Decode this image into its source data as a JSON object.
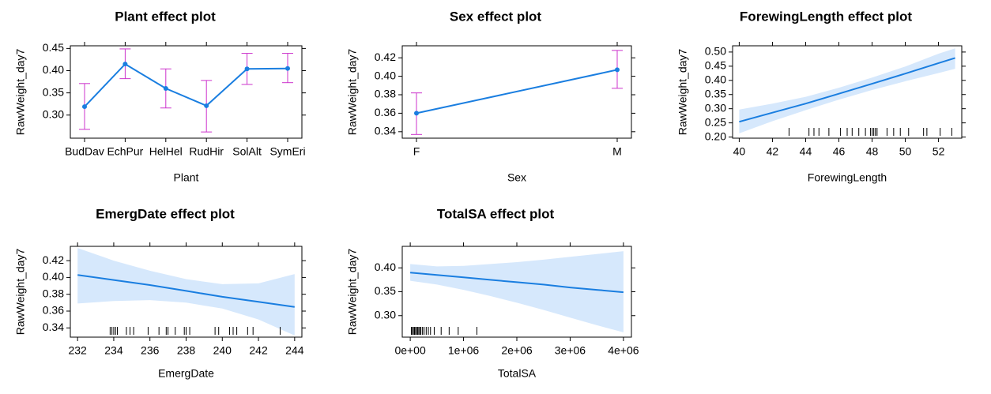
{
  "chart_data": [
    {
      "type": "line",
      "title": "Plant effect plot",
      "xlabel": "Plant",
      "ylabel": "RawWeight_day7",
      "categorical": true,
      "categories": [
        "BudDav",
        "EchPur",
        "HelHel",
        "RudHir",
        "SolAlt",
        "SymEri"
      ],
      "values": [
        0.319,
        0.415,
        0.36,
        0.321,
        0.404,
        0.405
      ],
      "lower": [
        0.268,
        0.382,
        0.316,
        0.262,
        0.369,
        0.373
      ],
      "upper": [
        0.371,
        0.449,
        0.404,
        0.378,
        0.439,
        0.439
      ],
      "ylim": [
        0.248,
        0.456
      ],
      "yticks": [
        0.3,
        0.35,
        0.4,
        0.45
      ],
      "yticklabels": [
        "0.30",
        "0.35",
        "0.40",
        "0.45"
      ],
      "line_color": "#1a7ee0",
      "ci_color": "#cc33cc"
    },
    {
      "type": "line",
      "title": "Sex effect plot",
      "xlabel": "Sex",
      "ylabel": "RawWeight_day7",
      "categorical": true,
      "categories": [
        "F",
        "M"
      ],
      "values": [
        0.36,
        0.407
      ],
      "lower": [
        0.337,
        0.387
      ],
      "upper": [
        0.382,
        0.428
      ],
      "ylim": [
        0.333,
        0.433
      ],
      "yticks": [
        0.34,
        0.36,
        0.38,
        0.4,
        0.42
      ],
      "yticklabels": [
        "0.34",
        "0.36",
        "0.38",
        "0.40",
        "0.42"
      ],
      "line_color": "#1a7ee0",
      "ci_color": "#cc33cc"
    },
    {
      "type": "area",
      "title": "ForewingLength effect plot",
      "xlabel": "ForewingLength",
      "ylabel": "RawWeight_day7",
      "categorical": false,
      "x": [
        40,
        42,
        44,
        46,
        48,
        50,
        52,
        53
      ],
      "fit": [
        0.254,
        0.286,
        0.318,
        0.353,
        0.388,
        0.424,
        0.461,
        0.479
      ],
      "lower": [
        0.213,
        0.256,
        0.295,
        0.332,
        0.366,
        0.397,
        0.426,
        0.441
      ],
      "upper": [
        0.297,
        0.318,
        0.342,
        0.374,
        0.41,
        0.449,
        0.494,
        0.513
      ],
      "xlim": [
        39.6,
        53.4
      ],
      "ylim": [
        0.196,
        0.522
      ],
      "xticks": [
        40,
        42,
        44,
        46,
        48,
        50,
        52
      ],
      "xticklabels": [
        "40",
        "42",
        "44",
        "46",
        "48",
        "50",
        "52"
      ],
      "yticks": [
        0.2,
        0.25,
        0.3,
        0.35,
        0.4,
        0.45,
        0.5
      ],
      "yticklabels": [
        "0.20",
        "0.25",
        "0.30",
        "0.35",
        "0.40",
        "0.45",
        "0.50"
      ],
      "rug": [
        43,
        44.2,
        44.5,
        44.8,
        45.4,
        46.1,
        46.5,
        46.8,
        47.2,
        47.6,
        47.9,
        48.0,
        48.1,
        48.2,
        48.3,
        48.9,
        49.3,
        49.7,
        50.2,
        51.1,
        51.3,
        52.1,
        52.8
      ],
      "line_color": "#1a7ee0",
      "band_color": "#d6e8fc"
    },
    {
      "type": "area",
      "title": "EmergDate effect plot",
      "xlabel": "EmergDate",
      "ylabel": "RawWeight_day7",
      "categorical": false,
      "x": [
        232,
        234,
        236,
        238,
        240,
        242,
        244
      ],
      "fit": [
        0.403,
        0.397,
        0.391,
        0.384,
        0.377,
        0.371,
        0.365
      ],
      "lower": [
        0.369,
        0.372,
        0.373,
        0.37,
        0.363,
        0.35,
        0.331
      ],
      "upper": [
        0.435,
        0.42,
        0.408,
        0.398,
        0.392,
        0.393,
        0.404
      ],
      "xlim": [
        231.6,
        244.4
      ],
      "ylim": [
        0.329,
        0.437
      ],
      "xticks": [
        232,
        234,
        236,
        238,
        240,
        242,
        244
      ],
      "xticklabels": [
        "232",
        "234",
        "236",
        "238",
        "240",
        "242",
        "244"
      ],
      "yticks": [
        0.34,
        0.36,
        0.38,
        0.4,
        0.42
      ],
      "yticklabels": [
        "0.34",
        "0.36",
        "0.38",
        "0.40",
        "0.42"
      ],
      "rug": [
        233.8,
        233.9,
        234.0,
        234.1,
        234.2,
        234.7,
        234.9,
        235.1,
        235.9,
        236.5,
        236.9,
        237.0,
        237.4,
        237.9,
        238.0,
        238.2,
        239.6,
        239.8,
        240.4,
        240.6,
        240.8,
        241.4,
        241.7,
        243.2
      ],
      "line_color": "#1a7ee0",
      "band_color": "#d6e8fc"
    },
    {
      "type": "area",
      "title": "TotalSA effect plot",
      "xlabel": "TotalSA",
      "ylabel": "RawWeight_day7",
      "categorical": false,
      "x": [
        0,
        500000,
        1000000,
        1500000,
        2000000,
        2500000,
        3000000,
        3500000,
        4000000
      ],
      "fit": [
        0.39,
        0.385,
        0.38,
        0.375,
        0.37,
        0.365,
        0.359,
        0.354,
        0.349
      ],
      "lower": [
        0.373,
        0.365,
        0.354,
        0.341,
        0.327,
        0.312,
        0.296,
        0.28,
        0.265
      ],
      "upper": [
        0.408,
        0.403,
        0.404,
        0.408,
        0.412,
        0.417,
        0.423,
        0.429,
        0.435
      ],
      "xlim": [
        -150000,
        4150000
      ],
      "ylim": [
        0.255,
        0.445
      ],
      "xticks": [
        0,
        1000000,
        2000000,
        3000000,
        4000000
      ],
      "xticklabels": [
        "0e+00",
        "1e+06",
        "2e+06",
        "3e+06",
        "4e+06"
      ],
      "yticks": [
        0.3,
        0.35,
        0.4
      ],
      "yticklabels": [
        "0.30",
        "0.35",
        "0.40"
      ],
      "rug": [
        20000,
        40000,
        60000,
        80000,
        100000,
        120000,
        140000,
        160000,
        180000,
        200000,
        230000,
        260000,
        300000,
        340000,
        380000,
        450000,
        580000,
        730000,
        900000,
        1250000
      ],
      "line_color": "#1a7ee0",
      "band_color": "#d6e8fc"
    }
  ]
}
